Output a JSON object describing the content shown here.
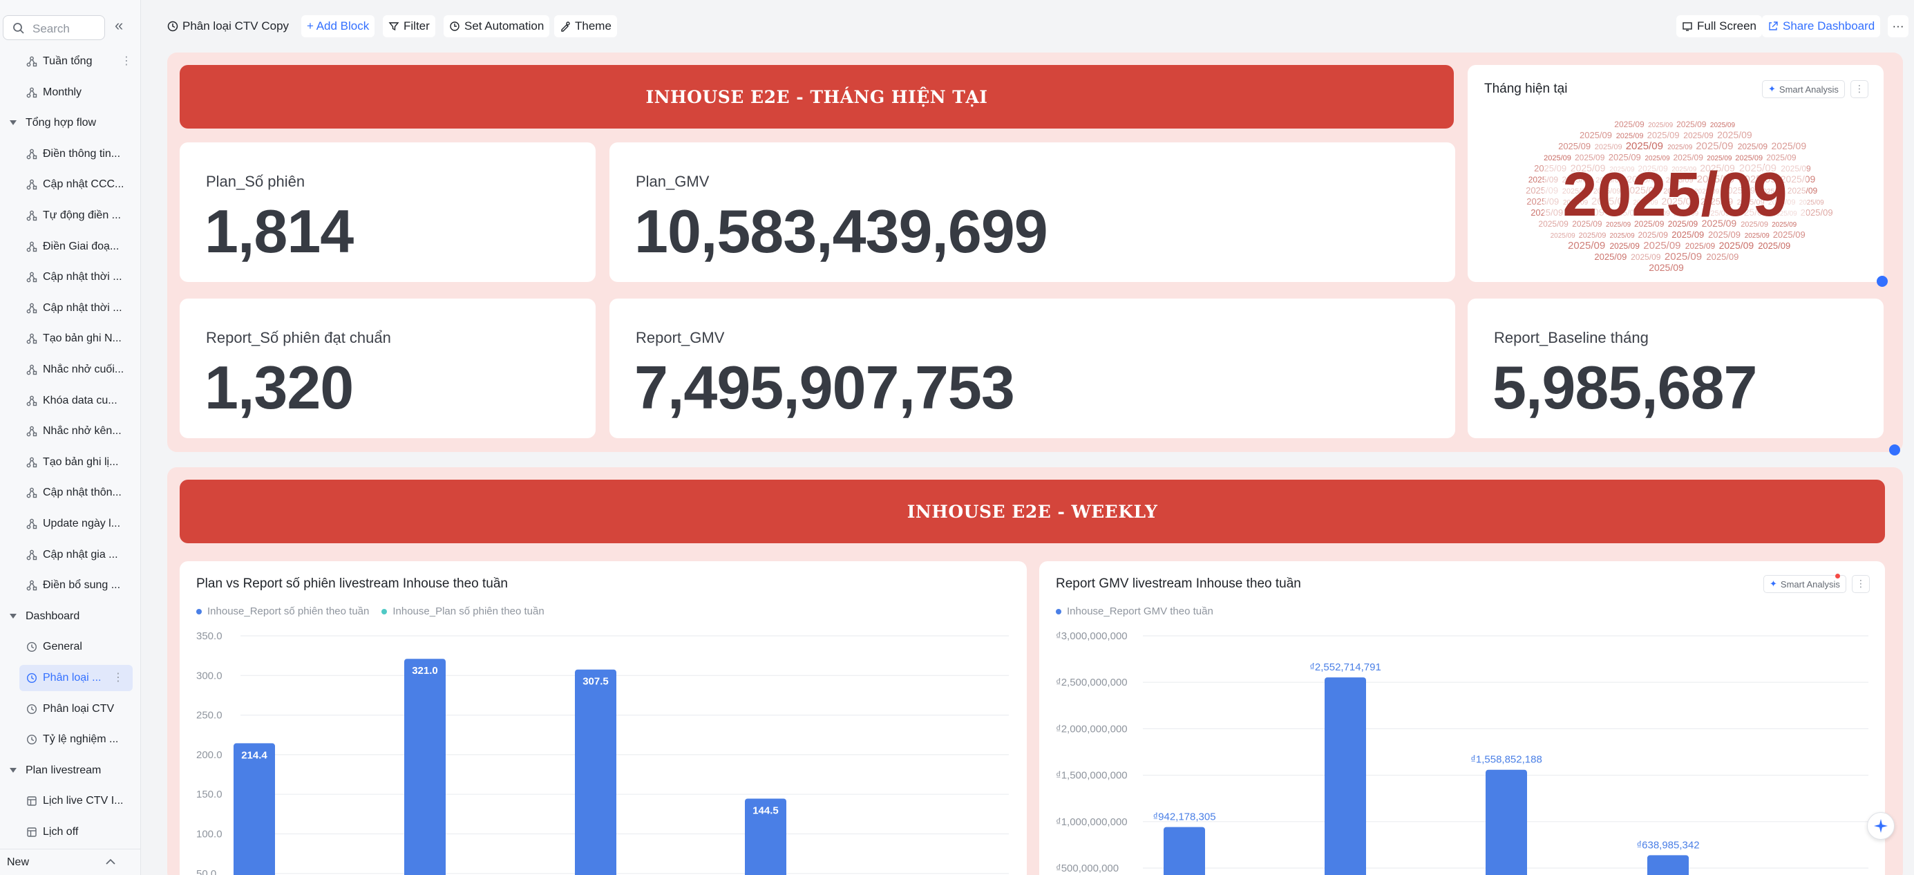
{
  "sidebar": {
    "search_placeholder": "Search",
    "items": [
      {
        "label": "Tuần tổng",
        "type": "flow",
        "more": true
      },
      {
        "label": "Monthly",
        "type": "flow"
      },
      {
        "label": "Tổng hợp flow",
        "type": "group"
      },
      {
        "label": "Điền thông tin...",
        "type": "flow"
      },
      {
        "label": "Cập nhật CCC...",
        "type": "flow"
      },
      {
        "label": "Tự động điền ...",
        "type": "flow"
      },
      {
        "label": "Điền Giai đoạ...",
        "type": "flow"
      },
      {
        "label": "Cập nhật thời ...",
        "type": "flow"
      },
      {
        "label": "Cập nhật thời ...",
        "type": "flow"
      },
      {
        "label": "Tạo bản ghi N...",
        "type": "flow"
      },
      {
        "label": "Nhắc nhở cuối...",
        "type": "flow"
      },
      {
        "label": "Khóa data cu...",
        "type": "flow"
      },
      {
        "label": "Nhắc nhở kên...",
        "type": "flow"
      },
      {
        "label": "Tạo bản ghi lị...",
        "type": "flow"
      },
      {
        "label": "Cập nhật thôn...",
        "type": "flow"
      },
      {
        "label": "Update ngày l...",
        "type": "flow"
      },
      {
        "label": "Cập nhật gia ...",
        "type": "flow"
      },
      {
        "label": "Điền bổ sung ...",
        "type": "flow"
      },
      {
        "label": "Dashboard",
        "type": "group"
      },
      {
        "label": "General",
        "type": "dash"
      },
      {
        "label": "Phân loại ...",
        "type": "dash",
        "active": true,
        "more": true
      },
      {
        "label": "Phân loại CTV",
        "type": "dash"
      },
      {
        "label": "Tỷ lệ nghiệm ...",
        "type": "dash"
      },
      {
        "label": "Plan livestream",
        "type": "group"
      },
      {
        "label": "Lịch live CTV I...",
        "type": "table"
      },
      {
        "label": "Lịch off",
        "type": "table"
      }
    ],
    "footer_label": "New"
  },
  "toolbar": {
    "dashboard_name": "Phân loại CTV Copy",
    "add_block": "+ Add Block",
    "filter": "Filter",
    "set_automation": "Set Automation",
    "theme": "Theme",
    "full_screen": "Full Screen",
    "share_dashboard": "Share Dashboard",
    "more": "···"
  },
  "monthly": {
    "banner": "INHOUSE E2E - THÁNG HIỆN TẠI",
    "plan_sessions": {
      "label": "Plan_Số phiên",
      "value": "1,814"
    },
    "plan_gmv": {
      "label": "Plan_GMV",
      "value": "10,583,439,699"
    },
    "report_sessions": {
      "label": "Report_Số phiên đạt chuẩn",
      "value": "1,320"
    },
    "report_gmv": {
      "label": "Report_GMV",
      "value": "7,495,907,753"
    },
    "report_baseline": {
      "label": "Report_Baseline tháng",
      "value": "5,985,687"
    },
    "wordcloud": {
      "title": "Tháng hiện tại",
      "main_word": "2025/09",
      "small_word": "2025/09",
      "smart_analysis": "Smart Analysis",
      "main_color": "#a2302a",
      "small_color": "#c86a63"
    }
  },
  "weekly": {
    "banner": "INHOUSE E2E - WEEKLY",
    "smart_analysis": "Smart Analysis"
  },
  "chart_data": [
    {
      "type": "bar",
      "title": "Plan vs Report số phiên livestream Inhouse theo tuần",
      "series": [
        {
          "name": "Inhouse_Report số phiên theo tuần",
          "color": "#4a7fe6",
          "values": [
            214.4,
            321.0,
            307.5,
            144.5
          ]
        },
        {
          "name": "Inhouse_Plan số phiên theo tuần",
          "color": "#4fc9c5",
          "values": []
        }
      ],
      "value_labels": [
        "214.4",
        "321.0",
        "307.5",
        "144.5"
      ],
      "y_ticks": [
        "350.0",
        "300.0",
        "250.0",
        "200.0",
        "150.0",
        "100.0",
        "50.0"
      ],
      "ylim": [
        0,
        350
      ],
      "grid": true,
      "legend_position": "top-left"
    },
    {
      "type": "bar",
      "title": "Report GMV livestream Inhouse theo tuần",
      "series": [
        {
          "name": "Inhouse_Report GMV theo tuần",
          "color": "#4a7fe6",
          "values": [
            942178305,
            2552714791,
            1558852188,
            638985342
          ]
        }
      ],
      "value_labels": [
        "₫942,178,305",
        "₫2,552,714,791",
        "₫1,558,852,188",
        "₫638,985,342"
      ],
      "y_ticks": [
        "₫3,000,000,000",
        "₫2,500,000,000",
        "₫2,000,000,000",
        "₫1,500,000,000",
        "₫1,000,000,000",
        "₫500,000,000"
      ],
      "ylim": [
        0,
        3000000000
      ],
      "grid": true,
      "legend_position": "top-left"
    }
  ]
}
